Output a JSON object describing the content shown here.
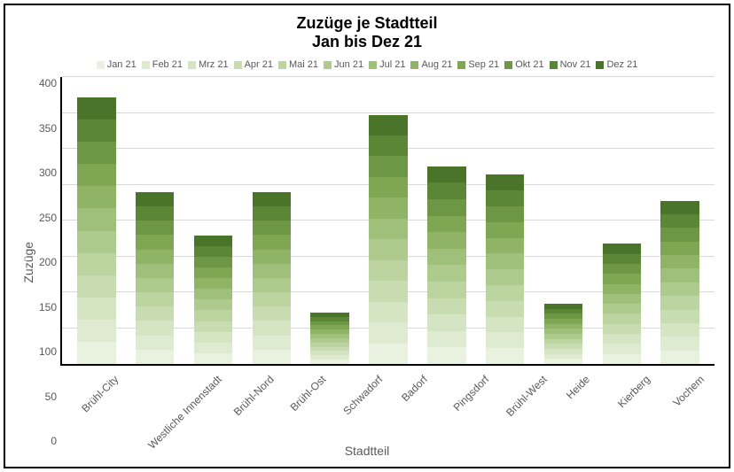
{
  "chart": {
    "type": "stacked-bar",
    "title_main": "Zuzüge je Stadtteil",
    "title_sub": "Jan bis Dez 21",
    "title_fontsize": 18,
    "legend_fontsize": 11,
    "axis_label_fontsize": 14,
    "tick_fontsize": 12,
    "border_color": "#000000",
    "background_color": "#ffffff",
    "grid_color": "#d9d9d9",
    "axis_color": "#000000",
    "text_color": "#595959",
    "y_axis": {
      "title": "Zuzüge",
      "min": 0,
      "max": 400,
      "tick_step": 50,
      "ticks": [
        0,
        50,
        100,
        150,
        200,
        250,
        300,
        350,
        400
      ]
    },
    "x_axis": {
      "title": "Stadtteil"
    },
    "series": [
      {
        "label": "Jan 21",
        "color": "#e9f1df"
      },
      {
        "label": "Feb 21",
        "color": "#dfebd1"
      },
      {
        "label": "Mrz 21",
        "color": "#d5e4c3"
      },
      {
        "label": "Apr 21",
        "color": "#c8dcb1"
      },
      {
        "label": "Mai 21",
        "color": "#bcd4a0"
      },
      {
        "label": "Jun 21",
        "color": "#aeca8d"
      },
      {
        "label": "Jul 21",
        "color": "#9fc07a"
      },
      {
        "label": "Aug 21",
        "color": "#8fb466"
      },
      {
        "label": "Sep 21",
        "color": "#7ea653"
      },
      {
        "label": "Okt 21",
        "color": "#6d9744"
      },
      {
        "label": "Nov 21",
        "color": "#5b8636"
      },
      {
        "label": "Dez 21",
        "color": "#4a7429"
      }
    ],
    "categories": [
      {
        "label": "Brühl-City",
        "values": [
          31,
          31,
          31,
          31,
          31,
          31,
          31,
          31,
          31,
          31,
          31,
          31
        ]
      },
      {
        "label": "Westliche Innenstadt",
        "values": [
          20,
          20,
          20,
          20,
          20,
          20,
          20,
          20,
          20,
          20,
          20,
          20
        ]
      },
      {
        "label": "Brühl-Nord",
        "values": [
          15,
          15,
          15,
          15,
          15,
          15,
          15,
          15,
          15,
          15,
          15,
          15
        ]
      },
      {
        "label": "Brühl-Ost",
        "values": [
          20,
          20,
          20,
          20,
          20,
          20,
          20,
          20,
          20,
          20,
          20,
          20
        ]
      },
      {
        "label": "Schwadorf",
        "values": [
          6,
          6,
          6,
          6,
          6,
          6,
          6,
          6,
          6,
          6,
          6,
          6
        ]
      },
      {
        "label": "Badorf",
        "values": [
          29,
          29,
          29,
          29,
          29,
          29,
          29,
          29,
          29,
          29,
          29,
          29
        ]
      },
      {
        "label": "Pingsdorf",
        "values": [
          23,
          23,
          23,
          23,
          23,
          23,
          23,
          23,
          23,
          23,
          23,
          23
        ]
      },
      {
        "label": "Brühl-West",
        "values": [
          22,
          22,
          22,
          22,
          22,
          22,
          22,
          22,
          22,
          22,
          22,
          22
        ]
      },
      {
        "label": "Heide",
        "values": [
          7,
          7,
          7,
          7,
          7,
          7,
          7,
          7,
          7,
          7,
          7,
          7
        ]
      },
      {
        "label": "Kierberg",
        "values": [
          14,
          14,
          14,
          14,
          14,
          14,
          14,
          14,
          14,
          14,
          14,
          14
        ]
      },
      {
        "label": "Vochem",
        "values": [
          19,
          19,
          19,
          19,
          19,
          19,
          19,
          19,
          19,
          19,
          19,
          19
        ]
      }
    ]
  }
}
